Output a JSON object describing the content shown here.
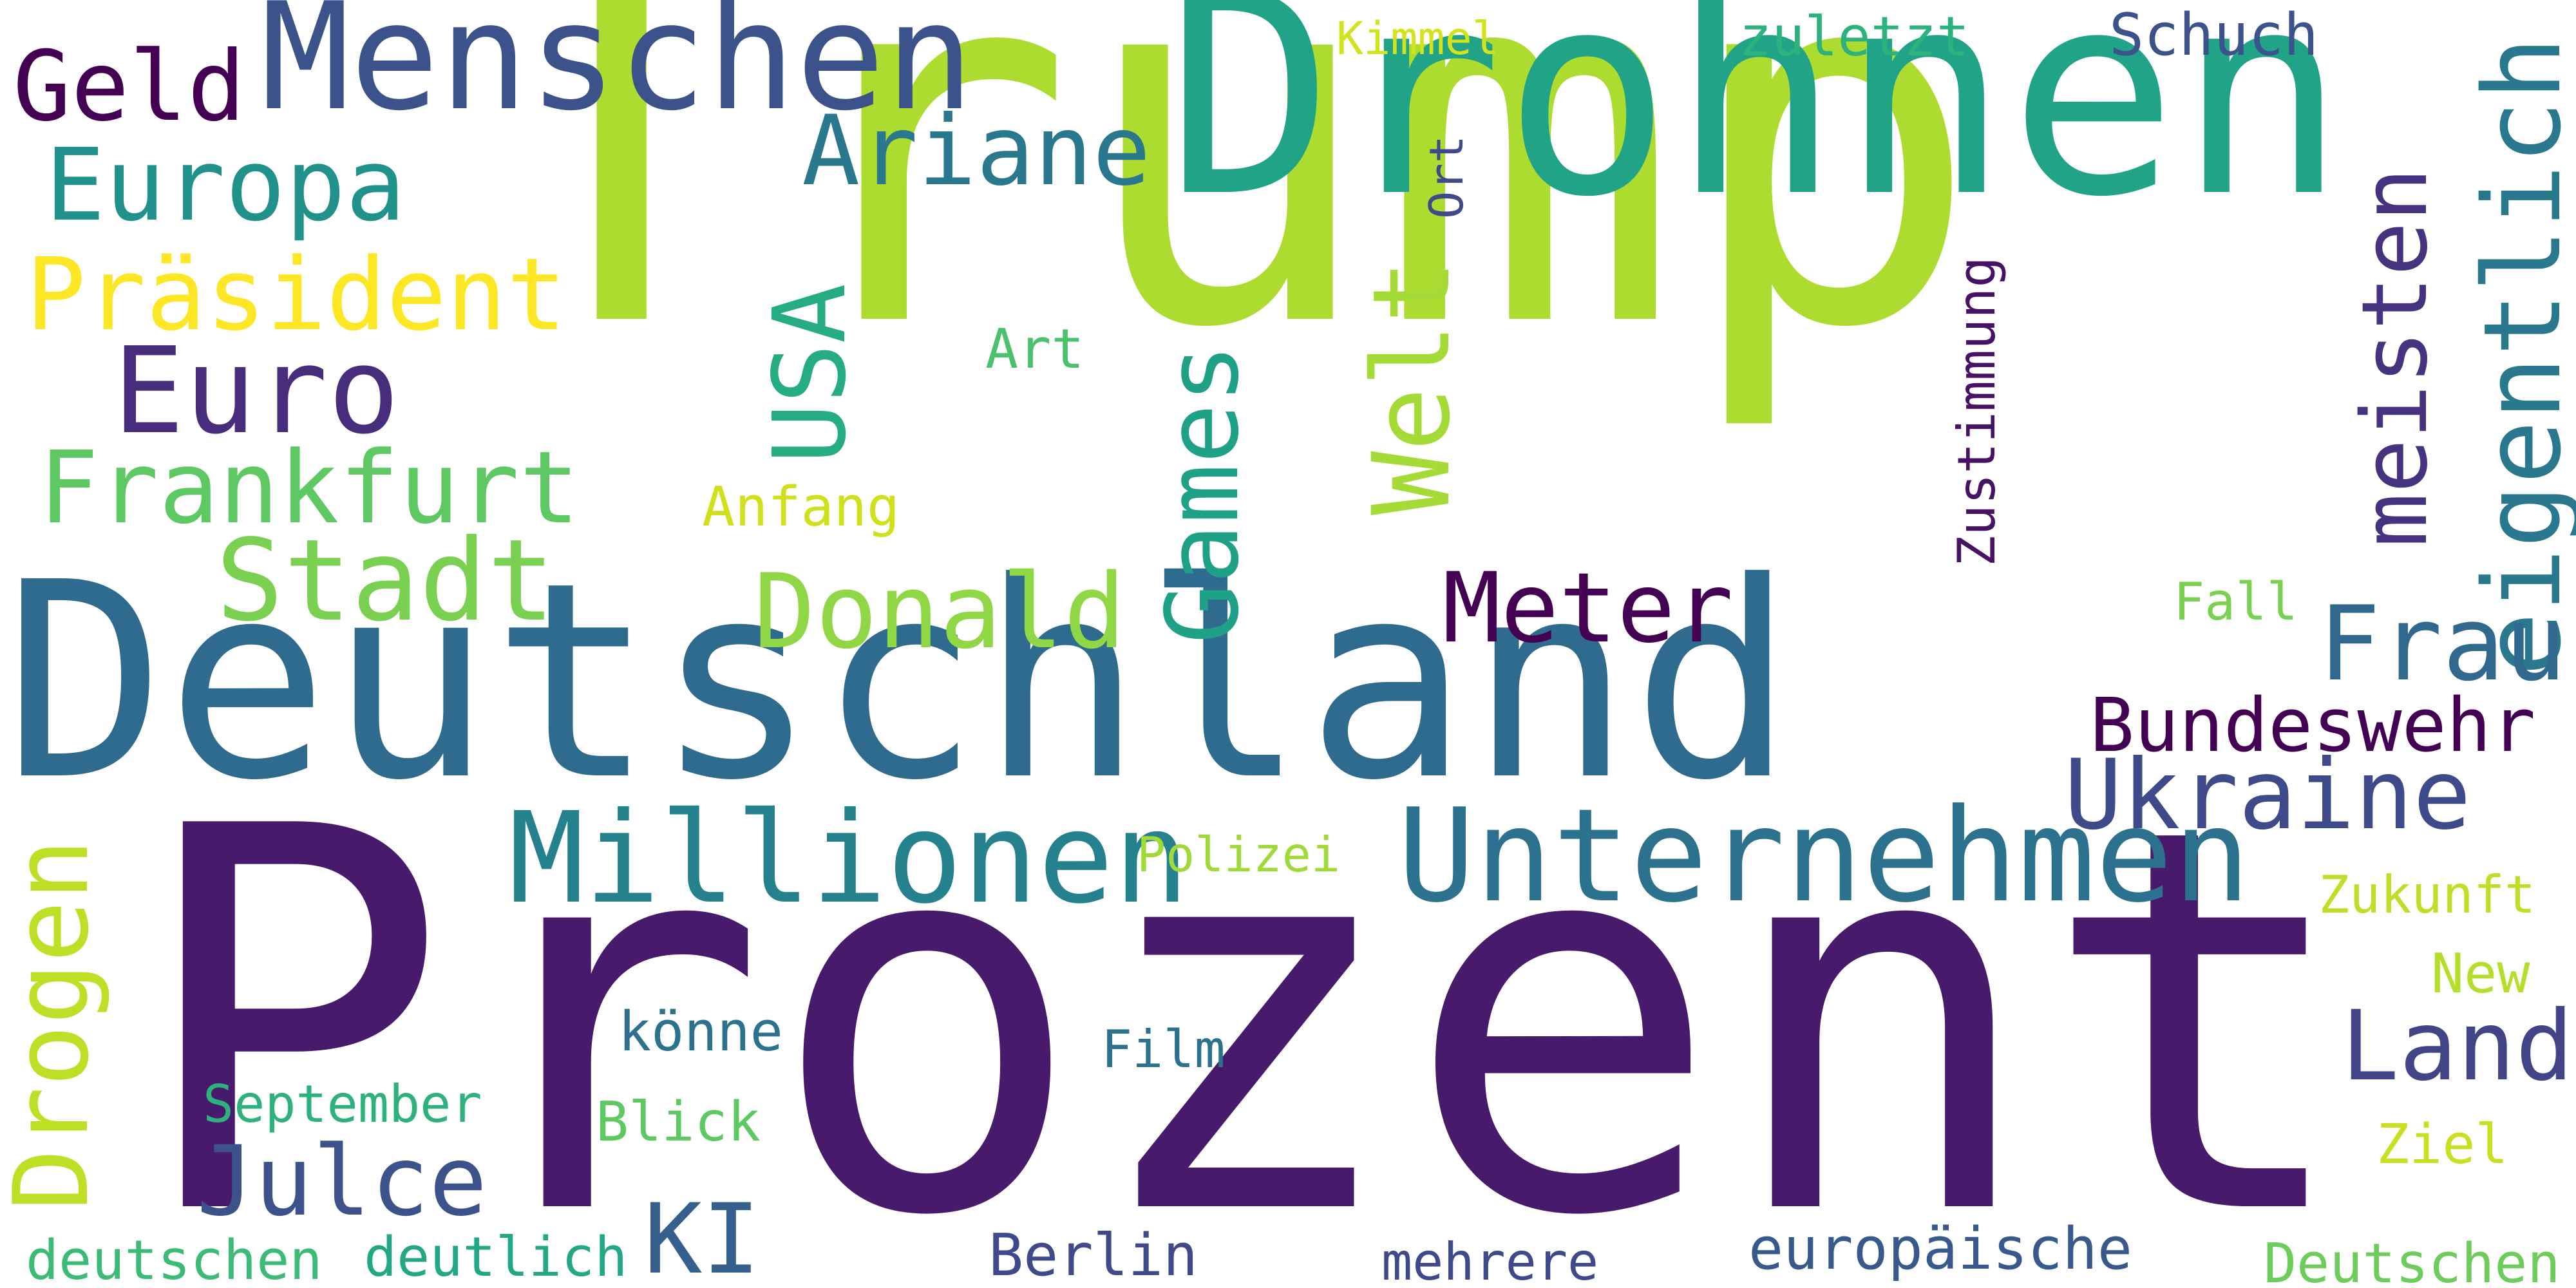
{
  "word_cloud": {
    "background": "#ffffff",
    "words": [
      {
        "text": "Trump",
        "color": "#addc30"
      },
      {
        "text": "Prozent",
        "color": "#481a6c"
      },
      {
        "text": "Deutschland",
        "color": "#2f6b8e"
      },
      {
        "text": "Drohnen",
        "color": "#20a386"
      },
      {
        "text": "Menschen",
        "color": "#3b528b"
      },
      {
        "text": "Unternehmen",
        "color": "#2c728e"
      },
      {
        "text": "Millionen",
        "color": "#26818e"
      },
      {
        "text": "Geld",
        "color": "#440154"
      },
      {
        "text": "Europa",
        "color": "#21918c"
      },
      {
        "text": "Präsident",
        "color": "#fde725"
      },
      {
        "text": "Euro",
        "color": "#472d7b"
      },
      {
        "text": "Frankfurt",
        "color": "#5ec962"
      },
      {
        "text": "Stadt",
        "color": "#7ad151"
      },
      {
        "text": "Ariane",
        "color": "#2a788e"
      },
      {
        "text": "USA",
        "color": "#25ac82"
      },
      {
        "text": "Games",
        "color": "#1fa187"
      },
      {
        "text": "Welt",
        "color": "#a5db36"
      },
      {
        "text": "Donald",
        "color": "#8fd744"
      },
      {
        "text": "Meter",
        "color": "#440154"
      },
      {
        "text": "meisten",
        "color": "#46327e"
      },
      {
        "text": "eigentlich",
        "color": "#2a788e"
      },
      {
        "text": "Frau",
        "color": "#31688e"
      },
      {
        "text": "Bundeswehr",
        "color": "#440154"
      },
      {
        "text": "Ukraine",
        "color": "#3e4a89"
      },
      {
        "text": "Land",
        "color": "#414487"
      },
      {
        "text": "Drogen",
        "color": "#bddf26"
      },
      {
        "text": "Julce",
        "color": "#3b528b"
      },
      {
        "text": "KI",
        "color": "#355f8d"
      },
      {
        "text": "Kimmel",
        "color": "#d2e21b"
      },
      {
        "text": "zuletzt",
        "color": "#2db27d"
      },
      {
        "text": "Schuch",
        "color": "#3b528b"
      },
      {
        "text": "Ort",
        "color": "#3e4a89"
      },
      {
        "text": "Zustimmung",
        "color": "#471164"
      },
      {
        "text": "Art",
        "color": "#4ac16d"
      },
      {
        "text": "Anfang",
        "color": "#d0e11c"
      },
      {
        "text": "Fall",
        "color": "#7ad151"
      },
      {
        "text": "Polizei",
        "color": "#a0da39"
      },
      {
        "text": "Zukunft",
        "color": "#bddf26"
      },
      {
        "text": "New",
        "color": "#b5de2b"
      },
      {
        "text": "könne",
        "color": "#2c728e"
      },
      {
        "text": "Film",
        "color": "#2c728e"
      },
      {
        "text": "September",
        "color": "#2db27d"
      },
      {
        "text": "Blick",
        "color": "#5ec962"
      },
      {
        "text": "Ziel",
        "color": "#c8e020"
      },
      {
        "text": "deutschen",
        "color": "#3bbb75"
      },
      {
        "text": "deutlich",
        "color": "#22a884"
      },
      {
        "text": "Berlin",
        "color": "#3e4a89"
      },
      {
        "text": "mehrere",
        "color": "#3e4a89"
      },
      {
        "text": "europäische",
        "color": "#38598c"
      },
      {
        "text": "Deutschen",
        "color": "#6ccd5a"
      }
    ]
  }
}
